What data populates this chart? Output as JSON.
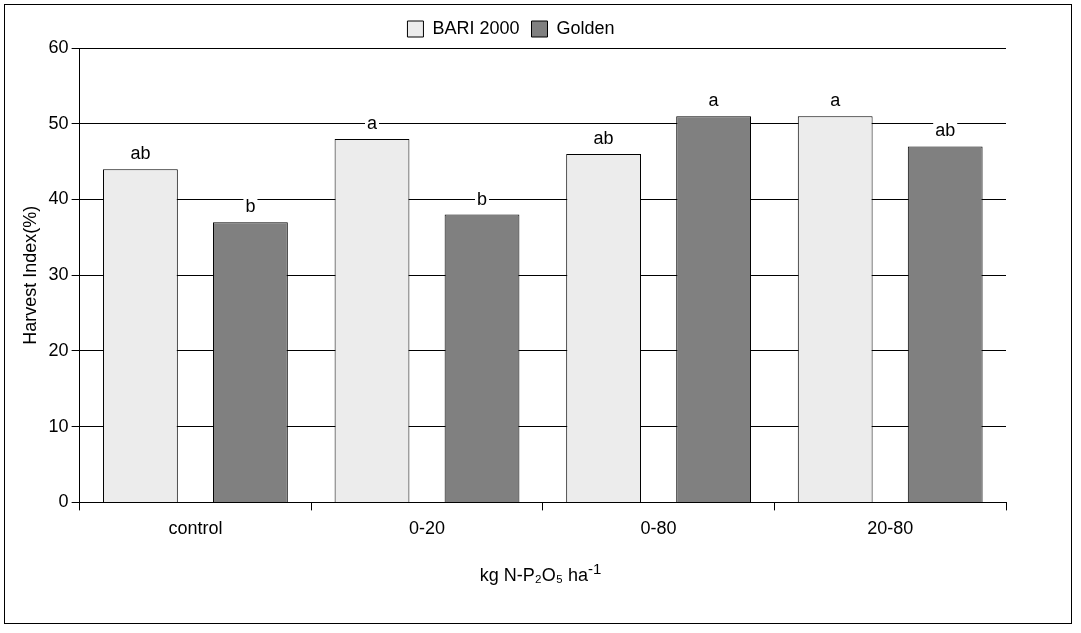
{
  "chart_data": {
    "type": "bar",
    "xlabel": "kg N-P₂O₅ ha$^{-1}$",
    "ylabel": "Harvest Index(%)",
    "categories": [
      "control",
      "0-20",
      "0-80",
      "20-80"
    ],
    "series": [
      {
        "name": "BARI 2000",
        "color": "#ececec",
        "values": [
          44,
          48,
          46,
          51
        ],
        "value_labels": [
          "ab",
          "a",
          "ab",
          "a"
        ]
      },
      {
        "name": "Golden",
        "color": "#808080",
        "values": [
          37,
          38,
          51,
          47
        ],
        "value_labels": [
          "b",
          "b",
          "a",
          "ab"
        ]
      }
    ],
    "ylim": [
      0,
      60
    ],
    "yticks": [
      0,
      10,
      20,
      30,
      40,
      50,
      60
    ],
    "grid": "y",
    "legend": "top"
  }
}
